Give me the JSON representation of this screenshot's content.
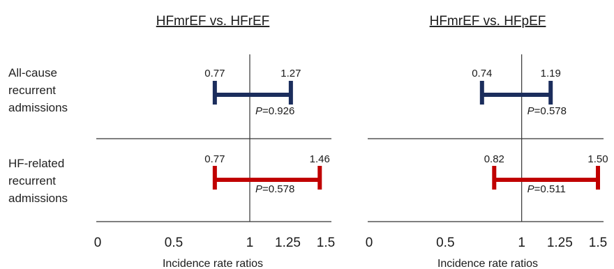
{
  "chart_data": [
    {
      "type": "forest",
      "title": "HFmrEF vs. HFrEF",
      "xlabel": "Incidence rate ratios",
      "xlim": [
        0,
        1.5
      ],
      "reference_line": 1,
      "ticks": [
        0,
        0.5,
        1,
        1.25,
        1.5
      ],
      "tick_labels": [
        "0",
        "0.5",
        "1",
        "1.25",
        "1.5"
      ],
      "rows": [
        {
          "label": [
            "All-cause",
            "recurrent",
            "admissions"
          ],
          "lower": 0.77,
          "upper": 1.27,
          "lower_label": "0.77",
          "upper_label": "1.27",
          "p_prefix": "P",
          "p_value": "=0.926",
          "color": "#1b2d5c"
        },
        {
          "label": [
            "HF-related",
            "recurrent",
            "admissions"
          ],
          "lower": 0.77,
          "upper": 1.46,
          "lower_label": "0.77",
          "upper_label": "1.46",
          "p_prefix": "P",
          "p_value": "=0.578",
          "color": "#c00000"
        }
      ]
    },
    {
      "type": "forest",
      "title": "HFmrEF vs. HFpEF",
      "xlabel": "Incidence rate ratios",
      "xlim": [
        0,
        1.5
      ],
      "reference_line": 1,
      "ticks": [
        0,
        0.5,
        1,
        1.25,
        1.5
      ],
      "tick_labels": [
        "0",
        "0.5",
        "1",
        "1.25",
        "1.5"
      ],
      "rows": [
        {
          "lower": 0.74,
          "upper": 1.19,
          "lower_label": "0.74",
          "upper_label": "1.19",
          "p_prefix": "P",
          "p_value": "=0.578",
          "color": "#1b2d5c"
        },
        {
          "lower": 0.82,
          "upper": 1.5,
          "lower_label": "0.82",
          "upper_label": "1.50",
          "p_prefix": "P",
          "p_value": "=0.511",
          "color": "#c00000"
        }
      ]
    }
  ]
}
